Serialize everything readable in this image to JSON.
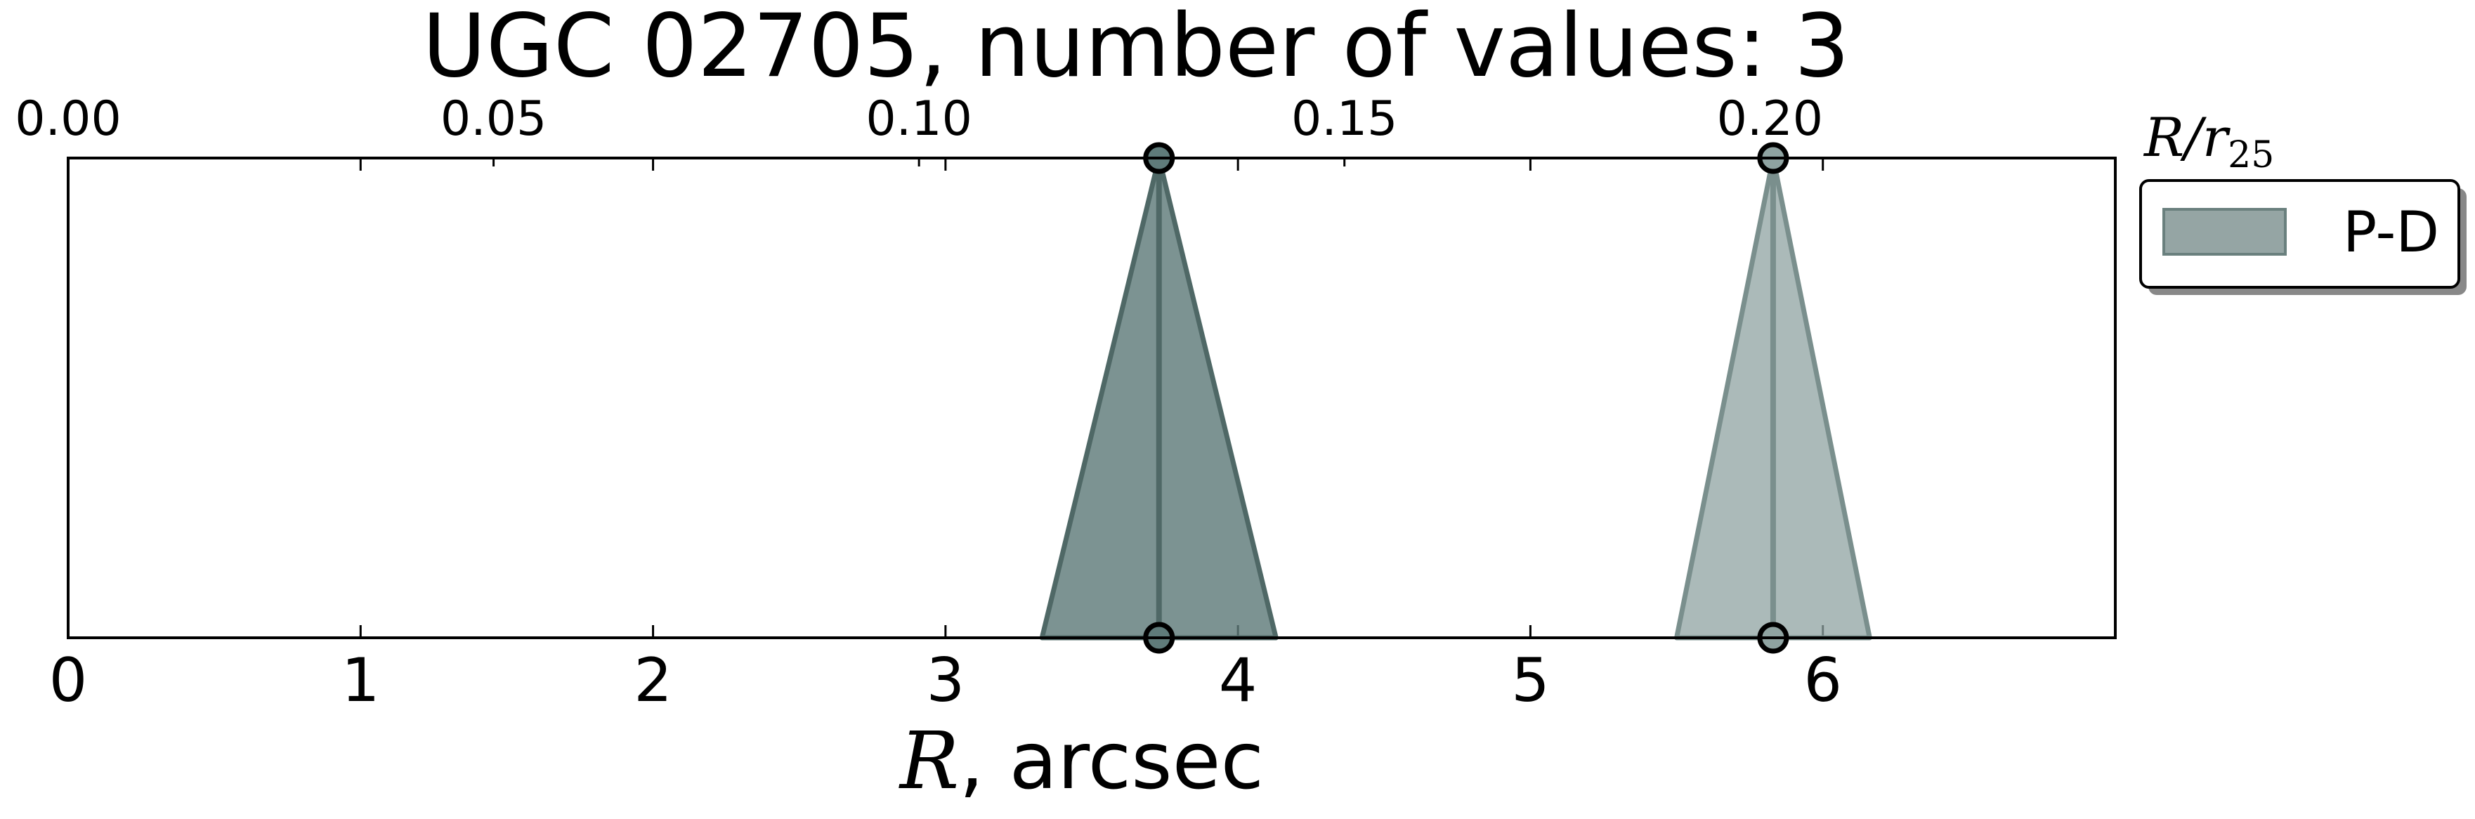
{
  "chart_data": {
    "type": "area",
    "title": "UGC 02705, number of values: 3",
    "xlabel": {
      "symbol": "R",
      "rest": ", arcsec"
    },
    "top_axis_label": {
      "base": "R/r",
      "sub": "25"
    },
    "xlim": [
      0,
      7
    ],
    "x_ticks": [
      0,
      1,
      2,
      3,
      4,
      5,
      6
    ],
    "x_tick_labels": [
      "0",
      "1",
      "2",
      "3",
      "4",
      "5",
      "6"
    ],
    "top_xlim": [
      0,
      0.2406
    ],
    "top_ticks": [
      0.0,
      0.05,
      0.1,
      0.15,
      0.2
    ],
    "top_tick_labels": [
      "0.00",
      "0.05",
      "0.10",
      "0.15",
      "0.20"
    ],
    "grid": false,
    "legend": {
      "position": "outside-right",
      "entries": [
        {
          "label": "P-D",
          "color": "#7a8f8d"
        }
      ]
    },
    "series": [
      {
        "name": "P-D",
        "peaks": [
          {
            "x": 3.73,
            "left": 3.33,
            "right": 4.13,
            "fill": "#5f7b7a",
            "fill_opacity": 0.82,
            "edge": "#4f6866"
          },
          {
            "x": 5.83,
            "left": 5.5,
            "right": 6.16,
            "fill": "#8fa3a1",
            "fill_opacity": 0.75,
            "edge": "#7a8f8d"
          }
        ]
      }
    ]
  }
}
